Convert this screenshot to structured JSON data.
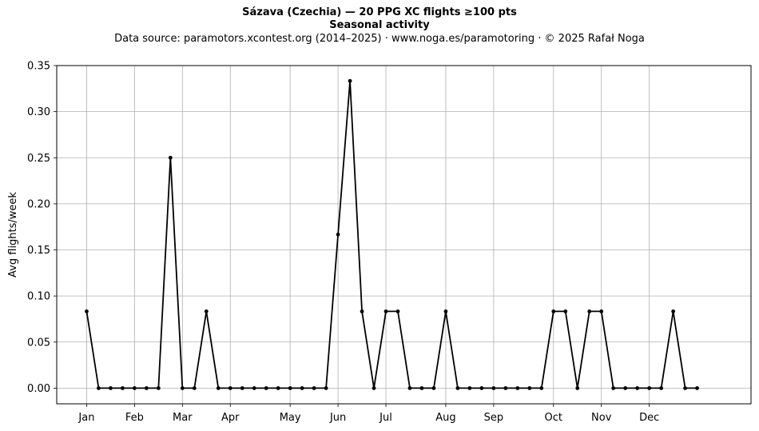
{
  "title": "Sázava (Czechia)  —  20 PPG XC flights ≥100 pts",
  "subtitle": "Seasonal activity",
  "source": "Data source: paramotors.xcontest.org (2014–2025)  ·  www.noga.es/paramotoring  ·  © 2025 Rafał Noga",
  "chart_data": {
    "type": "line",
    "title": "Sázava (Czechia)  —  20 PPG XC flights ≥100 pts",
    "subtitle": "Seasonal activity",
    "xlabel": "",
    "ylabel": "Avg flights/week",
    "x_unit": "week of year",
    "x_ticks": [
      {
        "label": "Jan",
        "x": 1
      },
      {
        "label": "Feb",
        "x": 5
      },
      {
        "label": "Mar",
        "x": 9
      },
      {
        "label": "Apr",
        "x": 13
      },
      {
        "label": "May",
        "x": 18
      },
      {
        "label": "Jun",
        "x": 22
      },
      {
        "label": "Jul",
        "x": 26
      },
      {
        "label": "Aug",
        "x": 31
      },
      {
        "label": "Sep",
        "x": 35
      },
      {
        "label": "Oct",
        "x": 40
      },
      {
        "label": "Nov",
        "x": 44
      },
      {
        "label": "Dec",
        "x": 48
      }
    ],
    "xlim": [
      -1.5,
      56.5
    ],
    "y_ticks": [
      "0.00",
      "0.05",
      "0.10",
      "0.15",
      "0.20",
      "0.25",
      "0.30",
      "0.35"
    ],
    "ylim": [
      -0.017,
      0.35
    ],
    "grid": true,
    "color": "#000000",
    "x": [
      1,
      2,
      3,
      4,
      5,
      6,
      7,
      8,
      9,
      10,
      11,
      12,
      13,
      14,
      15,
      16,
      17,
      18,
      19,
      20,
      21,
      22,
      23,
      24,
      25,
      26,
      27,
      28,
      29,
      30,
      31,
      32,
      33,
      34,
      35,
      36,
      37,
      38,
      39,
      40,
      41,
      42,
      43,
      44,
      45,
      46,
      47,
      48,
      49,
      50,
      51,
      52
    ],
    "values": [
      0.0833,
      0,
      0,
      0,
      0,
      0,
      0,
      0.25,
      0,
      0,
      0.0833,
      0,
      0,
      0,
      0,
      0,
      0,
      0,
      0,
      0,
      0,
      0.1667,
      0.3333,
      0.0833,
      0,
      0.0833,
      0.0833,
      0,
      0,
      0,
      0.0833,
      0,
      0,
      0,
      0,
      0,
      0,
      0,
      0,
      0.0833,
      0.0833,
      0,
      0.0833,
      0.0833,
      0,
      0,
      0,
      0,
      0,
      0.0833,
      0,
      0
    ]
  }
}
